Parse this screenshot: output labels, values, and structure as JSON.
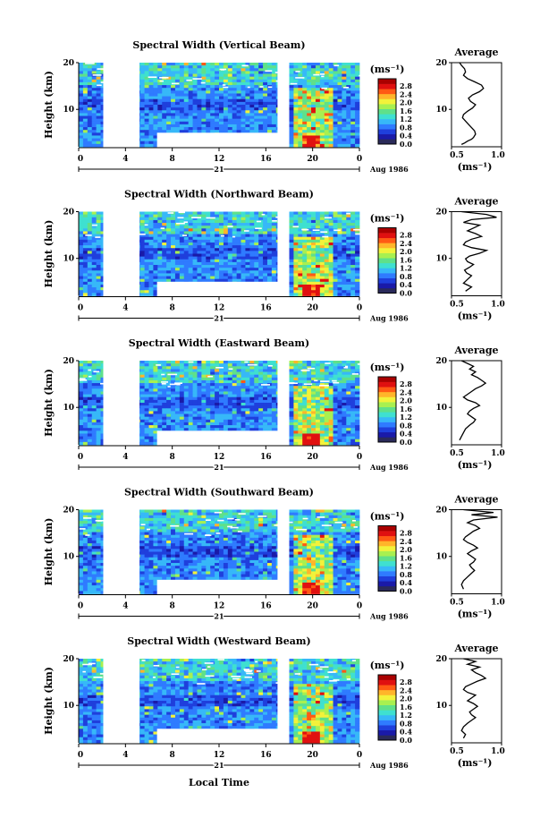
{
  "figure": {
    "x_axis_label": "Local Time",
    "date_label": "Aug 1986",
    "day_label": "21"
  },
  "colors": {
    "colorbar_stops": [
      "#2a2a5a",
      "#1a1aa8",
      "#1f3fdc",
      "#2f7bff",
      "#37b8f8",
      "#3fe0d0",
      "#5fe08a",
      "#a8f050",
      "#f2f23a",
      "#ffb52a",
      "#ff5a14",
      "#e01010",
      "#aa0000"
    ],
    "background_field": "#3a64e6",
    "gap": "#ffffff"
  },
  "chart_data": [
    {
      "type": "heatmap",
      "title": "Spectral Width (Vertical Beam)",
      "xlabel": "",
      "ylabel": "Height (km)",
      "xticks": [
        "0",
        "4",
        "8",
        "12",
        "16",
        "20",
        "0"
      ],
      "xlim": [
        0,
        24
      ],
      "yticks": [
        "20",
        "10"
      ],
      "ylim": [
        2,
        20
      ],
      "colorbar": {
        "label": "(ms⁻¹)",
        "ticks": [
          "2.8",
          "2.4",
          "2.0",
          "1.6",
          "1.2",
          "0.8",
          "0.4",
          "0.0"
        ],
        "range": [
          0.0,
          3.0
        ]
      },
      "average_profile": {
        "title": "Average",
        "xlabel": "(ms⁻¹)",
        "xticks": [
          "0.5",
          "1.0"
        ],
        "yticks": [
          "20",
          "10"
        ],
        "xlim": [
          0.5,
          1.0
        ],
        "ylim": [
          2,
          20
        ],
        "x": [
          0.58,
          0.6,
          0.63,
          0.64,
          0.62,
          0.66,
          0.73,
          0.8,
          0.82,
          0.78,
          0.71,
          0.67,
          0.69,
          0.74,
          0.71,
          0.66,
          0.62,
          0.61,
          0.64,
          0.67,
          0.7,
          0.73,
          0.74,
          0.72,
          0.7,
          0.66,
          0.63,
          0.6
        ],
        "y": [
          20,
          19.4,
          18.7,
          18.0,
          17.3,
          16.6,
          15.9,
          15.2,
          14.5,
          13.8,
          13.1,
          12.4,
          11.7,
          11.0,
          10.3,
          9.6,
          8.9,
          8.2,
          7.5,
          6.8,
          6.1,
          5.4,
          4.7,
          4.0,
          3.6,
          3.2,
          2.8,
          2.5
        ]
      }
    },
    {
      "type": "heatmap",
      "title": "Spectral Width (Northward Beam)",
      "xlabel": "",
      "ylabel": "Height (km)",
      "xticks": [
        "0",
        "4",
        "8",
        "12",
        "16",
        "20",
        "0"
      ],
      "xlim": [
        0,
        24
      ],
      "yticks": [
        "20",
        "10"
      ],
      "ylim": [
        2,
        20
      ],
      "colorbar": {
        "label": "(ms⁻¹)",
        "ticks": [
          "2.8",
          "2.4",
          "2.0",
          "1.6",
          "1.2",
          "0.8",
          "0.4",
          "0.0"
        ],
        "range": [
          0.0,
          3.0
        ]
      },
      "average_profile": {
        "title": "Average",
        "xlabel": "(ms⁻¹)",
        "xticks": [
          "0.5",
          "1.0"
        ],
        "yticks": [
          "20",
          "10"
        ],
        "xlim": [
          0.5,
          1.0
        ],
        "ylim": [
          2,
          20
        ],
        "x": [
          0.6,
          0.85,
          0.95,
          0.7,
          0.62,
          0.78,
          0.72,
          0.66,
          0.74,
          0.8,
          0.7,
          0.64,
          0.62,
          0.7,
          0.85,
          0.78,
          0.68,
          0.64,
          0.66,
          0.72,
          0.68,
          0.63,
          0.65,
          0.7,
          0.66,
          0.62,
          0.7,
          0.64
        ],
        "y": [
          20,
          19.4,
          18.8,
          18.3,
          17.7,
          17.1,
          16.5,
          15.9,
          15.3,
          14.7,
          14.1,
          13.5,
          12.9,
          12.3,
          11.7,
          11.1,
          10.5,
          9.9,
          9.3,
          8.7,
          8.1,
          7.5,
          6.9,
          6.3,
          5.5,
          4.7,
          3.9,
          3.0
        ]
      }
    },
    {
      "type": "heatmap",
      "title": "Spectral Width (Eastward Beam)",
      "xlabel": "",
      "ylabel": "Height (km)",
      "xticks": [
        "0",
        "4",
        "8",
        "12",
        "16",
        "20",
        "0"
      ],
      "xlim": [
        0,
        24
      ],
      "yticks": [
        "20",
        "10"
      ],
      "ylim": [
        2,
        20
      ],
      "colorbar": {
        "label": "(ms⁻¹)",
        "ticks": [
          "2.8",
          "2.4",
          "2.0",
          "1.6",
          "1.2",
          "0.8",
          "0.4",
          "0.0"
        ],
        "range": [
          0.0,
          3.0
        ]
      },
      "average_profile": {
        "title": "Average",
        "xlabel": "(ms⁻¹)",
        "xticks": [
          "0.5",
          "1.0"
        ],
        "yticks": [
          "20",
          "10"
        ],
        "xlim": [
          0.5,
          1.0
        ],
        "ylim": [
          2,
          20
        ],
        "x": [
          0.6,
          0.66,
          0.72,
          0.68,
          0.74,
          0.7,
          0.76,
          0.8,
          0.84,
          0.8,
          0.74,
          0.7,
          0.66,
          0.62,
          0.66,
          0.74,
          0.78,
          0.72,
          0.68,
          0.66,
          0.7,
          0.74,
          0.72,
          0.68,
          0.64,
          0.62,
          0.6,
          0.58
        ],
        "y": [
          20,
          19.4,
          18.8,
          18.2,
          17.6,
          17.0,
          16.4,
          15.8,
          15.2,
          14.6,
          14.0,
          13.4,
          12.8,
          12.2,
          11.6,
          11.0,
          10.4,
          9.8,
          9.2,
          8.6,
          8.0,
          7.4,
          6.8,
          6.2,
          5.4,
          4.6,
          3.8,
          3.0
        ]
      }
    },
    {
      "type": "heatmap",
      "title": "Spectral Width (Southward Beam)",
      "xlabel": "",
      "ylabel": "Height (km)",
      "xticks": [
        "0",
        "4",
        "8",
        "12",
        "16",
        "20",
        "0"
      ],
      "xlim": [
        0,
        24
      ],
      "yticks": [
        "20",
        "10"
      ],
      "ylim": [
        2,
        20
      ],
      "colorbar": {
        "label": "(ms⁻¹)",
        "ticks": [
          "2.8",
          "2.4",
          "2.0",
          "1.6",
          "1.2",
          "0.8",
          "0.4",
          "0.0"
        ],
        "range": [
          0.0,
          3.0
        ]
      },
      "average_profile": {
        "title": "Average",
        "xlabel": "(ms⁻¹)",
        "xticks": [
          "0.5",
          "1.0"
        ],
        "yticks": [
          "20",
          "10"
        ],
        "xlim": [
          0.5,
          1.0
        ],
        "ylim": [
          2,
          20
        ],
        "x": [
          0.62,
          0.92,
          0.7,
          0.96,
          0.72,
          0.66,
          0.74,
          0.78,
          0.72,
          0.68,
          0.64,
          0.62,
          0.66,
          0.72,
          0.76,
          0.7,
          0.66,
          0.7,
          0.74,
          0.72,
          0.68,
          0.7,
          0.73,
          0.7,
          0.66,
          0.62,
          0.6,
          0.62
        ],
        "y": [
          20,
          19.4,
          18.9,
          18.4,
          17.8,
          17.2,
          16.6,
          16.0,
          15.4,
          14.8,
          14.2,
          13.6,
          13.0,
          12.4,
          11.8,
          11.2,
          10.6,
          10.0,
          9.4,
          8.8,
          8.2,
          7.6,
          7.0,
          6.4,
          5.6,
          4.8,
          4.0,
          3.0
        ]
      }
    },
    {
      "type": "heatmap",
      "title": "Spectral Width (Westward Beam)",
      "xlabel": "",
      "ylabel": "Height (km)",
      "xticks": [
        "0",
        "4",
        "8",
        "12",
        "16",
        "20",
        "0"
      ],
      "xlim": [
        0,
        24
      ],
      "yticks": [
        "20",
        "10"
      ],
      "ylim": [
        2,
        20
      ],
      "colorbar": {
        "label": "(ms⁻¹)",
        "ticks": [
          "2.8",
          "2.4",
          "2.0",
          "1.6",
          "1.2",
          "0.8",
          "0.4",
          "0.0"
        ],
        "range": [
          0.0,
          3.0
        ]
      },
      "average_profile": {
        "title": "Average",
        "xlabel": "(ms⁻¹)",
        "xticks": [
          "0.5",
          "1.0"
        ],
        "yticks": [
          "20",
          "10"
        ],
        "xlim": [
          0.5,
          1.0
        ],
        "ylim": [
          2,
          20
        ],
        "x": [
          0.62,
          0.74,
          0.66,
          0.78,
          0.7,
          0.74,
          0.8,
          0.84,
          0.76,
          0.7,
          0.64,
          0.62,
          0.66,
          0.74,
          0.7,
          0.66,
          0.72,
          0.76,
          0.72,
          0.68,
          0.7,
          0.74,
          0.7,
          0.66,
          0.62,
          0.6,
          0.64,
          0.62
        ],
        "y": [
          20,
          19.4,
          18.8,
          18.2,
          17.6,
          17.0,
          16.4,
          15.8,
          15.2,
          14.6,
          14.0,
          13.4,
          12.8,
          12.2,
          11.6,
          11.0,
          10.4,
          9.8,
          9.2,
          8.6,
          8.0,
          7.4,
          6.8,
          6.2,
          5.4,
          4.6,
          3.8,
          3.0
        ]
      }
    }
  ]
}
